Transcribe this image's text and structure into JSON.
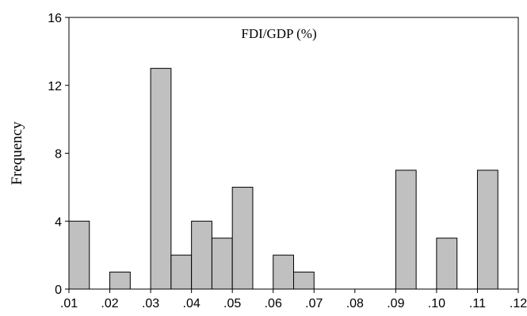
{
  "chart_data": {
    "type": "bar",
    "title": "FDI/GDP (%)",
    "xlabel": "",
    "ylabel": "Frequency",
    "xlim": [
      0.01,
      0.12
    ],
    "ylim": [
      0,
      16
    ],
    "bin_width": 0.005,
    "x_ticks": [
      ".01",
      ".02",
      ".03",
      ".04",
      ".05",
      ".06",
      ".07",
      ".08",
      ".09",
      ".10",
      ".11",
      ".12"
    ],
    "y_ticks": [
      "0",
      "4",
      "8",
      "12",
      "16"
    ],
    "bins": [
      {
        "start": 0.01,
        "end": 0.015,
        "count": 4
      },
      {
        "start": 0.015,
        "end": 0.02,
        "count": 0
      },
      {
        "start": 0.02,
        "end": 0.025,
        "count": 1
      },
      {
        "start": 0.025,
        "end": 0.03,
        "count": 0
      },
      {
        "start": 0.03,
        "end": 0.035,
        "count": 13
      },
      {
        "start": 0.035,
        "end": 0.04,
        "count": 2
      },
      {
        "start": 0.04,
        "end": 0.045,
        "count": 4
      },
      {
        "start": 0.045,
        "end": 0.05,
        "count": 3
      },
      {
        "start": 0.05,
        "end": 0.055,
        "count": 6
      },
      {
        "start": 0.055,
        "end": 0.06,
        "count": 0
      },
      {
        "start": 0.06,
        "end": 0.065,
        "count": 2
      },
      {
        "start": 0.065,
        "end": 0.07,
        "count": 1
      },
      {
        "start": 0.07,
        "end": 0.075,
        "count": 0
      },
      {
        "start": 0.075,
        "end": 0.08,
        "count": 0
      },
      {
        "start": 0.08,
        "end": 0.085,
        "count": 0
      },
      {
        "start": 0.085,
        "end": 0.09,
        "count": 0
      },
      {
        "start": 0.09,
        "end": 0.095,
        "count": 7
      },
      {
        "start": 0.095,
        "end": 0.1,
        "count": 0
      },
      {
        "start": 0.1,
        "end": 0.105,
        "count": 3
      },
      {
        "start": 0.105,
        "end": 0.11,
        "count": 0
      },
      {
        "start": 0.11,
        "end": 0.115,
        "count": 7
      },
      {
        "start": 0.115,
        "end": 0.12,
        "count": 0
      }
    ],
    "bar_color": "#c0c0c0",
    "bar_edge_color": "#000000",
    "grid": false,
    "legend": "none"
  }
}
